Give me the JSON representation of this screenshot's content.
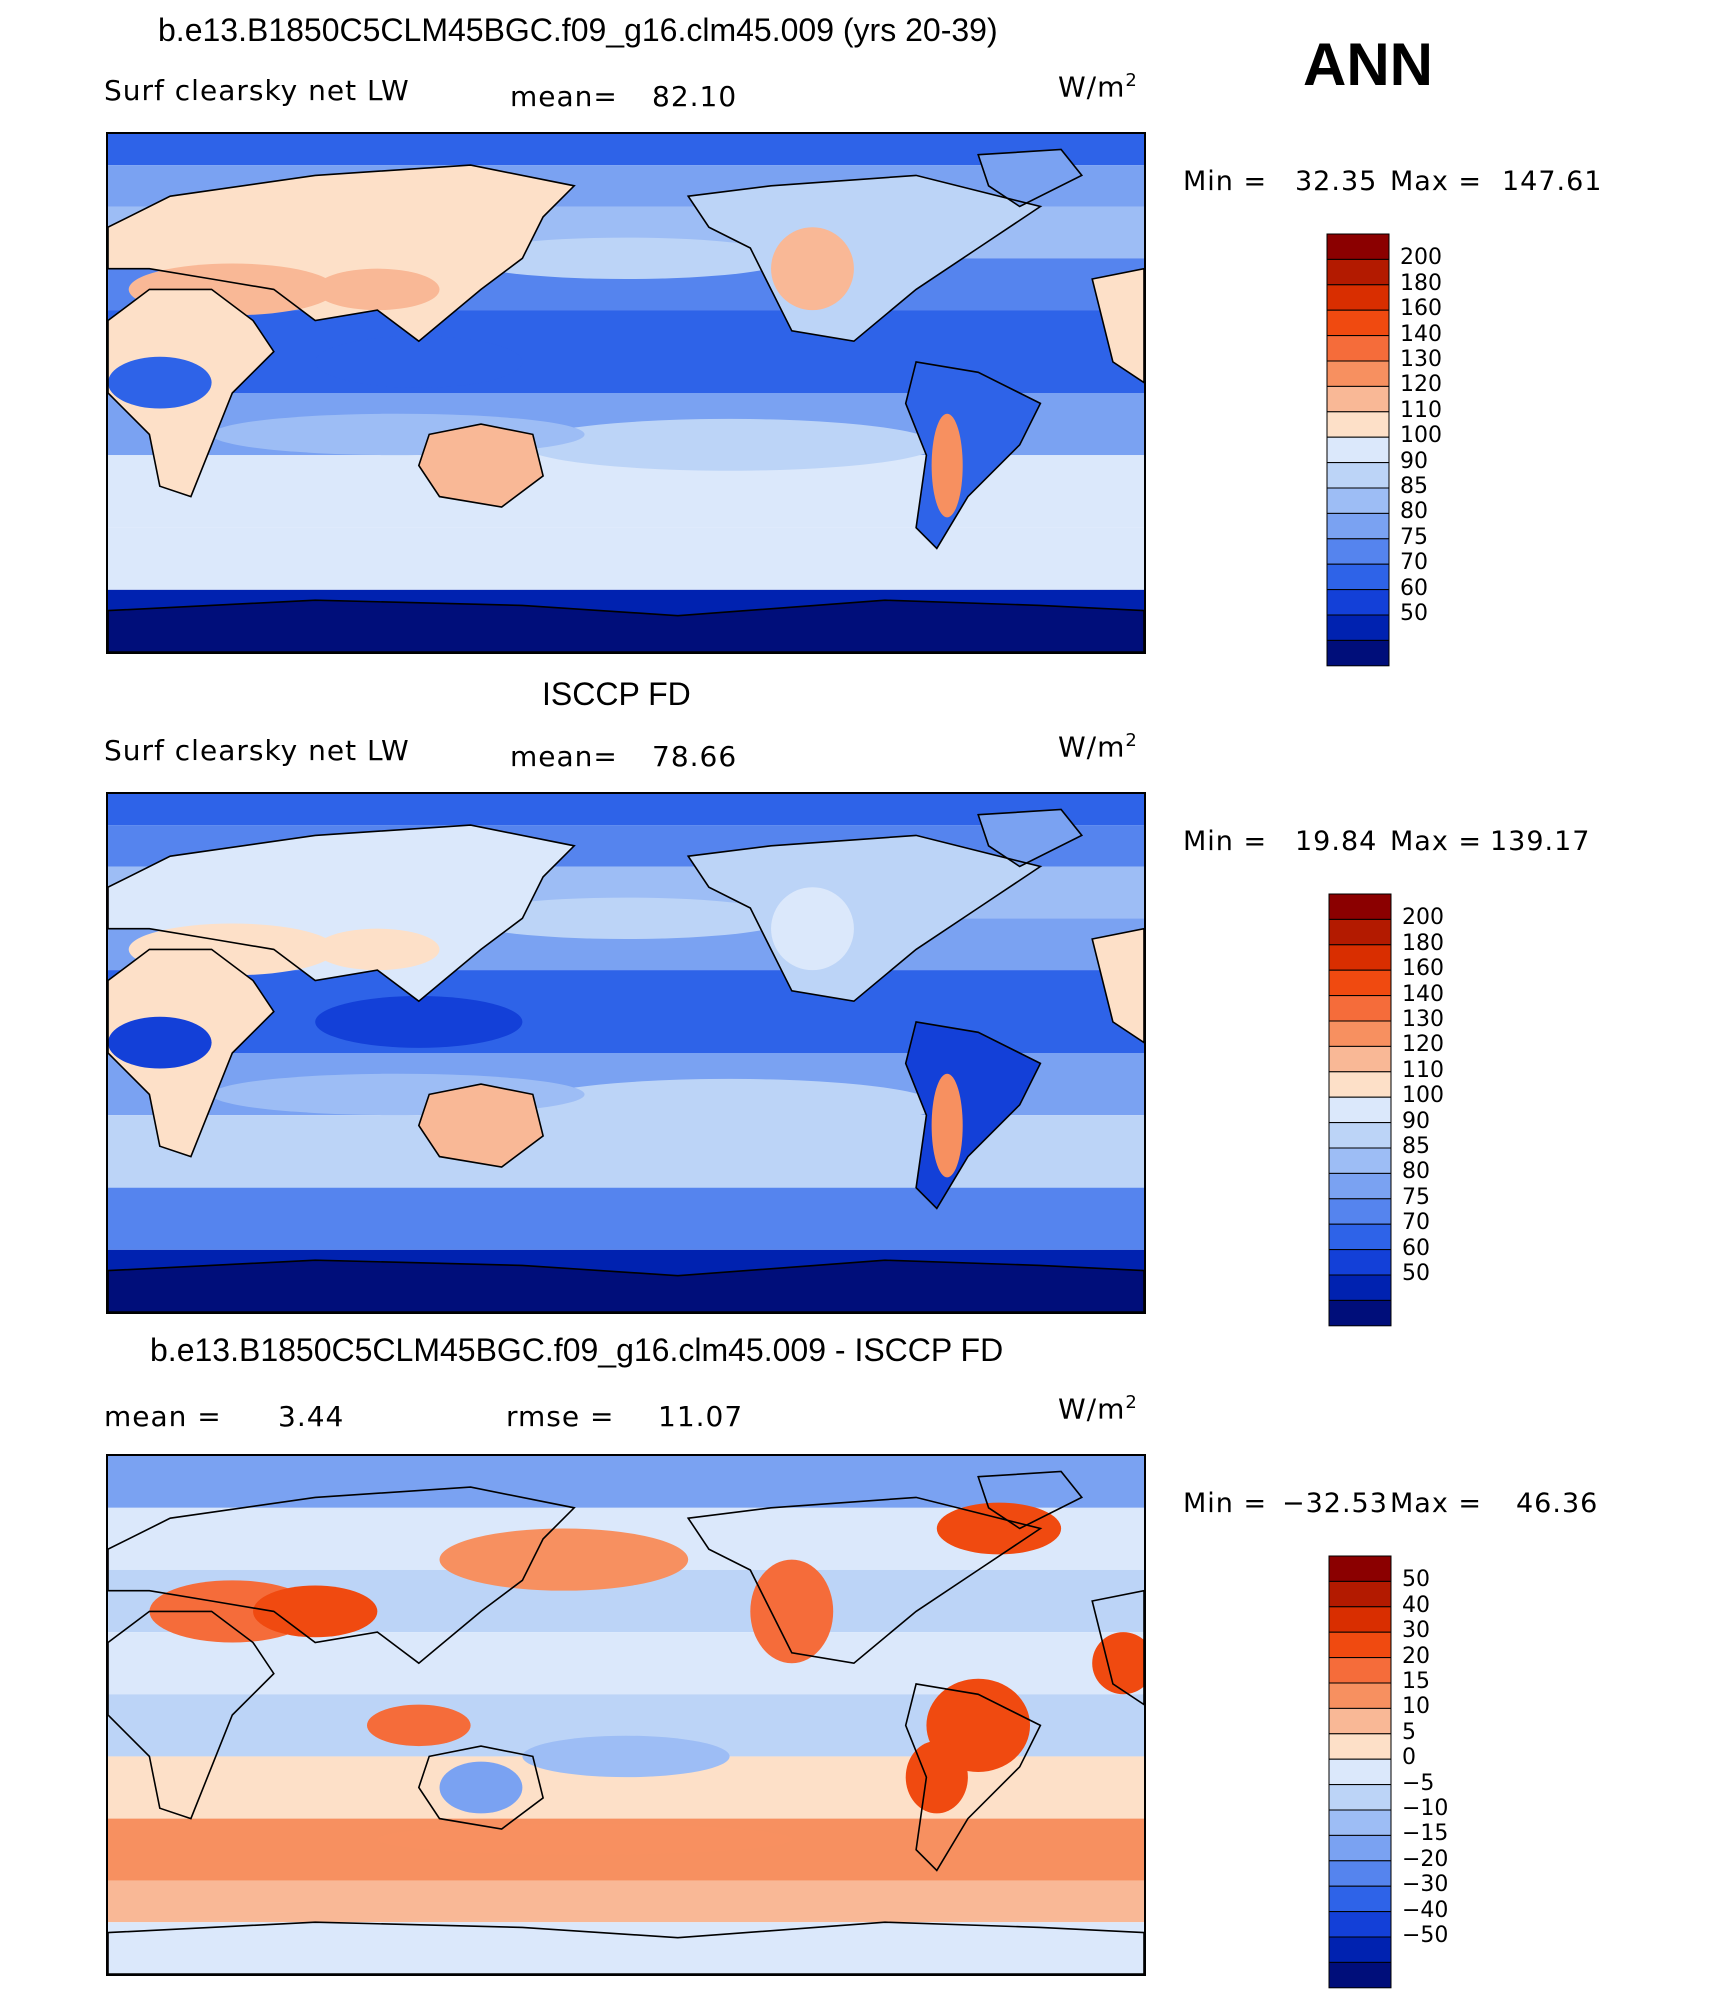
{
  "season": "ANN",
  "panels": [
    {
      "title": "b.e13.B1850C5CLM45BGC.f09_g16.clm45.009 (yrs 20-39)",
      "variable": "Surf clearsky net LW",
      "stat1_label": "mean=",
      "stat1_value": "82.10",
      "units": "W/m",
      "units_sup": "2",
      "min_label": "Min =",
      "min_value": "32.35",
      "max_label": "Max =",
      "max_value": "147.61",
      "levels": [
        "200",
        "180",
        "160",
        "140",
        "130",
        "120",
        "110",
        "100",
        "90",
        "85",
        "80",
        "75",
        "70",
        "60",
        "50"
      ],
      "colors": [
        "#8b0000",
        "#b31a00",
        "#d92e00",
        "#f04a10",
        "#f56c3a",
        "#f79060",
        "#f9b896",
        "#fde0c8",
        "#dbe8fb",
        "#bcd4f7",
        "#9dbdf5",
        "#7aa2f2",
        "#5584ee",
        "#2e63e8",
        "#1340d8",
        "#0022b0",
        "#000e7a"
      ],
      "map_style": "model"
    },
    {
      "title": "ISCCP FD",
      "variable": "Surf clearsky net LW",
      "stat1_label": "mean=",
      "stat1_value": "78.66",
      "units": "W/m",
      "units_sup": "2",
      "min_label": "Min =",
      "min_value": "19.84",
      "max_label": "Max =",
      "max_value": "139.17",
      "levels": [
        "200",
        "180",
        "160",
        "140",
        "130",
        "120",
        "110",
        "100",
        "90",
        "85",
        "80",
        "75",
        "70",
        "60",
        "50"
      ],
      "colors": [
        "#8b0000",
        "#b31a00",
        "#d92e00",
        "#f04a10",
        "#f56c3a",
        "#f79060",
        "#f9b896",
        "#fde0c8",
        "#dbe8fb",
        "#bcd4f7",
        "#9dbdf5",
        "#7aa2f2",
        "#5584ee",
        "#2e63e8",
        "#1340d8",
        "#0022b0",
        "#000e7a"
      ],
      "map_style": "obs"
    },
    {
      "title": "b.e13.B1850C5CLM45BGC.f09_g16.clm45.009 - ISCCP FD",
      "stat1_label": "mean =",
      "stat1_value": "3.44",
      "stat2_label": "rmse =",
      "stat2_value": "11.07",
      "units": "W/m",
      "units_sup": "2",
      "min_label": "Min =",
      "min_value": "−32.53",
      "max_label": "Max =",
      "max_value": "46.36",
      "levels": [
        "50",
        "40",
        "30",
        "20",
        "15",
        "10",
        "5",
        "0",
        "−5",
        "−10",
        "−15",
        "−20",
        "−30",
        "−40",
        "−50"
      ],
      "colors": [
        "#8b0000",
        "#b31a00",
        "#d92e00",
        "#f04a10",
        "#f56c3a",
        "#f79060",
        "#f9b896",
        "#fde0c8",
        "#dbe8fb",
        "#bcd4f7",
        "#9dbdf5",
        "#7aa2f2",
        "#5584ee",
        "#2e63e8",
        "#1340d8",
        "#0022b0",
        "#000e7a"
      ],
      "map_style": "diff"
    }
  ]
}
